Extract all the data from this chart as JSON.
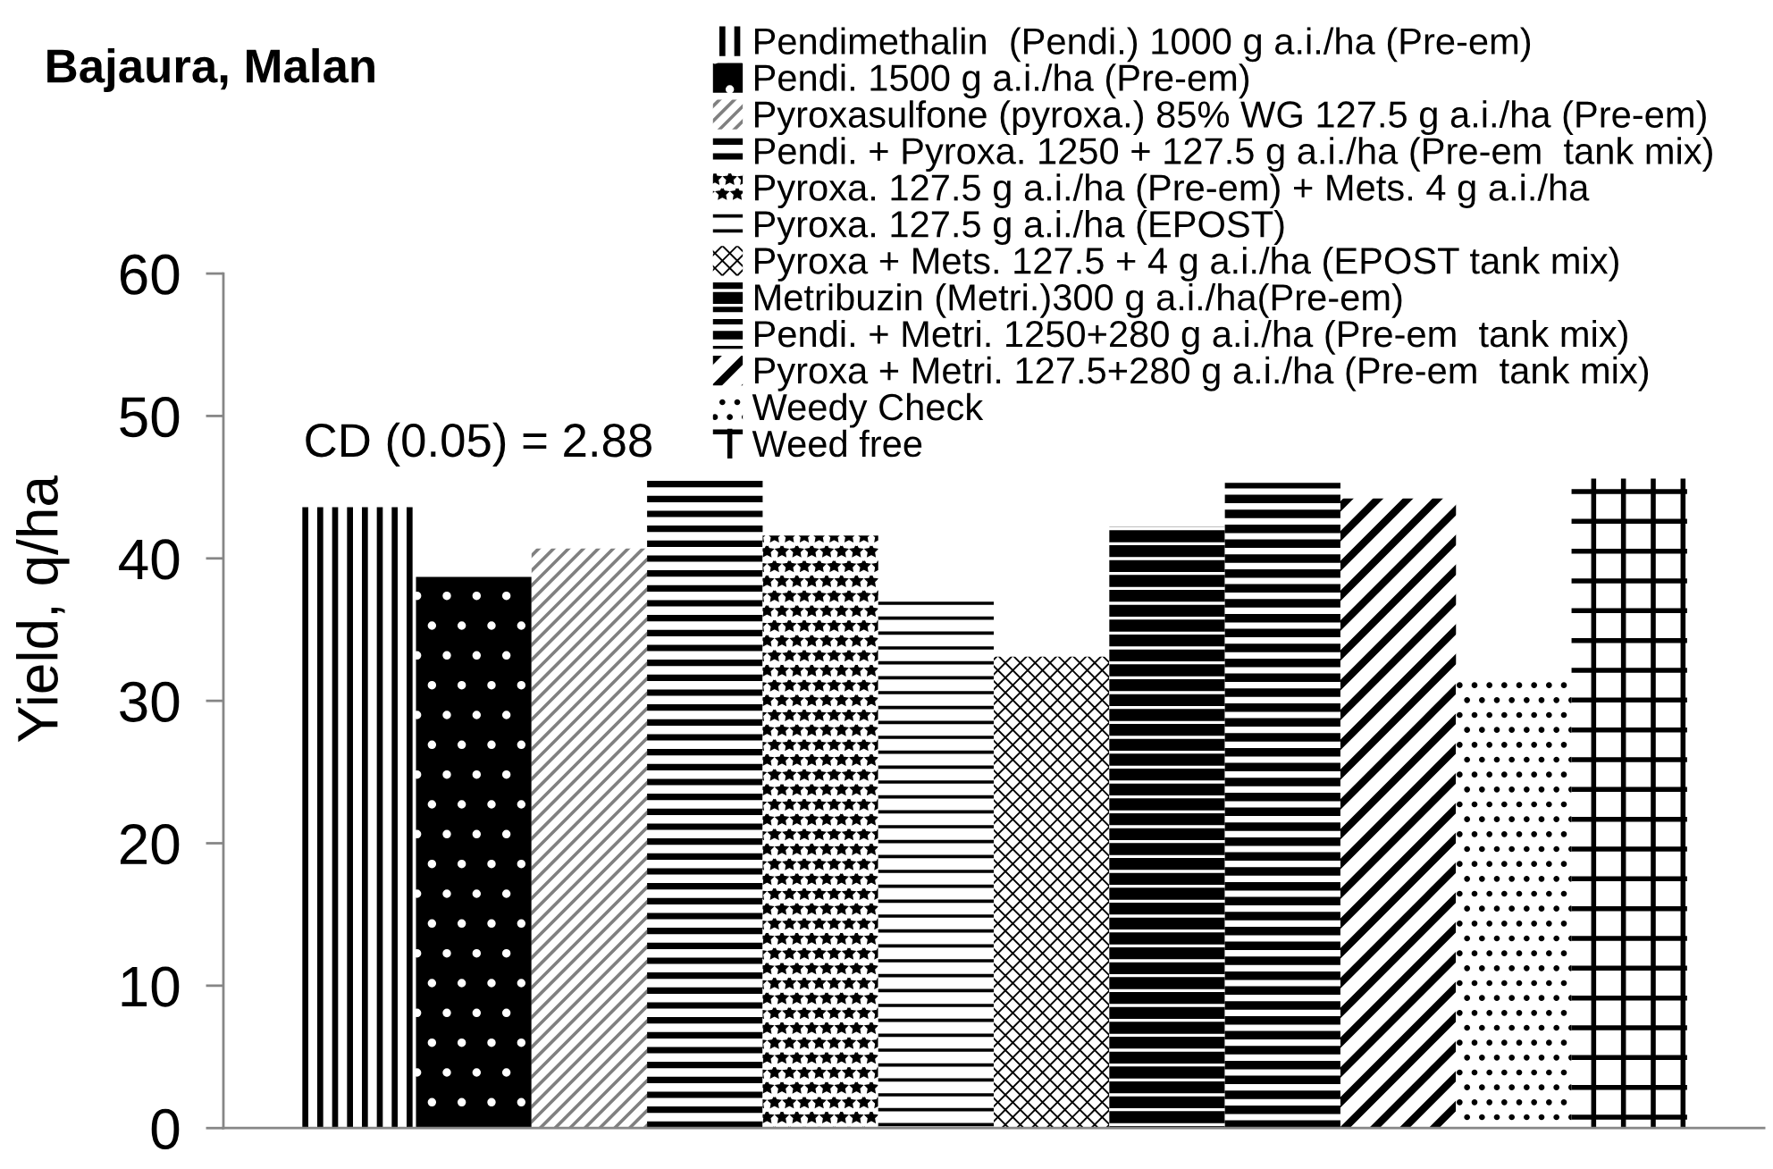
{
  "chart_data": {
    "type": "bar",
    "title": "Bajaura, Malan",
    "ylabel": "Yield, q/ha",
    "annotations": [
      "CD (0.05) = 2.88"
    ],
    "categories": [
      null
    ],
    "series": [
      {
        "name": "Pendimethalin  (Pendi.) 1000 g a.i./ha (Pre-em)",
        "color": "#000000",
        "values": [
          43.6
        ]
      },
      {
        "name": "Pendi. 1500 g a.i./ha (Pre-em)",
        "color": "#000000",
        "values": [
          38.7
        ]
      },
      {
        "name": "Pyroxasulfone (pyroxa.) 85% WG 127.5 g a.i./ha (Pre-em)",
        "color": "#808080",
        "values": [
          40.7
        ]
      },
      {
        "name": "Pendi. + Pyroxa. 1250 + 127.5 g a.i./ha (Pre-em  tank mix)",
        "color": "#000000",
        "values": [
          45.7
        ]
      },
      {
        "name": "Pyroxa. 127.5 g a.i./ha (Pre-em) + Mets. 4 g a.i./ha",
        "color": "#000000",
        "values": [
          41.6
        ]
      },
      {
        "name": "Pyroxa. 127.5 g a.i./ha (EPOST)",
        "color": "#000000",
        "values": [
          37.4
        ]
      },
      {
        "name": "Pyroxa + Mets. 127.5 + 4 g a.i./ha (EPOST tank mix)",
        "color": "#000000",
        "values": [
          33.1
        ]
      },
      {
        "name": "Metribuzin (Metri.)300 g a.i./ha(Pre-em)",
        "color": "#000000",
        "values": [
          42.2
        ]
      },
      {
        "name": "Pendi. + Metri. 1250+280 g a.i./ha (Pre-em  tank mix)",
        "color": "#000000",
        "values": [
          45.3
        ]
      },
      {
        "name": "Pyroxa + Metri. 127.5+280 g a.i./ha (Pre-em  tank mix)",
        "color": "#000000",
        "values": [
          44.2
        ]
      },
      {
        "name": "Weedy Check",
        "color": "#000000",
        "values": [
          31.8
        ]
      },
      {
        "name": "Weed free",
        "color": "#000000",
        "values": [
          45.6
        ]
      }
    ],
    "ylim": [
      0,
      60
    ],
    "yticks": [
      0,
      10,
      20,
      30,
      40,
      50,
      60
    ],
    "legend": "top right"
  }
}
